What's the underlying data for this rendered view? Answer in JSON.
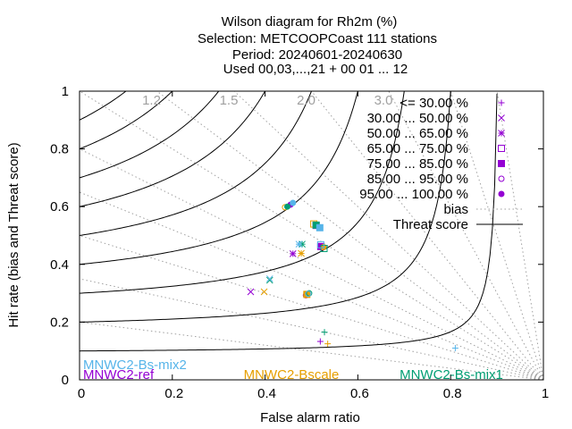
{
  "chart_data": {
    "type": "scatter",
    "title": [
      "Wilson diagram  for Rh2m (%)",
      "Selection: METCOOPCoast    111 stations",
      "Period: 20240601-20240630",
      "Used 00,03,...,21 + 00 01 ... 12"
    ],
    "xlabel": "False alarm ratio",
    "ylabel": "Hit rate (bias and Threat score)",
    "xlim": [
      0,
      1
    ],
    "ylim": [
      0,
      1
    ],
    "xticks": [
      "0",
      "0.2",
      "0.4",
      "0.6",
      "0.8",
      "1"
    ],
    "yticks": [
      "0",
      "0.2",
      "0.4",
      "0.6",
      "0.8",
      "1"
    ],
    "bias_values": [
      1.2,
      1.5,
      2.0,
      3.0
    ],
    "bias_labels": [
      "1.2",
      "1.5",
      "2.0",
      "3.0"
    ],
    "threat_scores": [
      0.1,
      0.2,
      0.3,
      0.4,
      0.5,
      0.6,
      0.7,
      0.8,
      0.9
    ],
    "legend_position": "top-right",
    "legend": [
      {
        "label": "<= 30.00 %",
        "symbol": "plus"
      },
      {
        "label": "30.00 ... 50.00 %",
        "symbol": "cross"
      },
      {
        "label": "50.00 ... 65.00 %",
        "symbol": "star"
      },
      {
        "label": "65.00 ... 75.00 %",
        "symbol": "box"
      },
      {
        "label": "75.00 ... 85.00 %",
        "symbol": "fbox"
      },
      {
        "label": "85.00 ... 95.00 %",
        "symbol": "circle"
      },
      {
        "label": "95.00 ... 100.00 %",
        "symbol": "fcircle"
      },
      {
        "label": "bias",
        "symbol": "dotline"
      },
      {
        "label": "Threat score",
        "symbol": "line"
      }
    ],
    "models": [
      {
        "name": "MNWC2-ref",
        "color": "#9400d3"
      },
      {
        "name": "MNWC2-Bscale",
        "color": "#e69f00"
      },
      {
        "name": "MNWC2-Bs-mix1",
        "color": "#009e73"
      },
      {
        "name": "MNWC2-Bs-mix2",
        "color": "#56b4e9"
      }
    ],
    "series": [
      {
        "name": "MNWC2-ref",
        "color": "#9400d3",
        "points": [
          {
            "x": 0.519,
            "y": 0.133,
            "m": "plus"
          },
          {
            "x": 0.369,
            "y": 0.305,
            "m": "cross"
          },
          {
            "x": 0.46,
            "y": 0.437,
            "m": "star"
          },
          {
            "x": 0.51,
            "y": 0.535,
            "m": "box"
          },
          {
            "x": 0.52,
            "y": 0.462,
            "m": "fbox"
          },
          {
            "x": 0.488,
            "y": 0.293,
            "m": "circle"
          },
          {
            "x": 0.455,
            "y": 0.607,
            "m": "fcircle"
          }
        ]
      },
      {
        "name": "MNWC2-Bscale",
        "color": "#e69f00",
        "points": [
          {
            "x": 0.535,
            "y": 0.125,
            "m": "plus"
          },
          {
            "x": 0.398,
            "y": 0.305,
            "m": "cross"
          },
          {
            "x": 0.478,
            "y": 0.438,
            "m": "star"
          },
          {
            "x": 0.505,
            "y": 0.54,
            "m": "box"
          },
          {
            "x": 0.49,
            "y": 0.296,
            "m": "fbox"
          },
          {
            "x": 0.443,
            "y": 0.598,
            "m": "circle"
          },
          {
            "x": 0.526,
            "y": 0.46,
            "m": "fcircle"
          }
        ]
      },
      {
        "name": "MNWC2-Bs-mix1",
        "color": "#009e73",
        "points": [
          {
            "x": 0.528,
            "y": 0.165,
            "m": "plus"
          },
          {
            "x": 0.41,
            "y": 0.345,
            "m": "cross"
          },
          {
            "x": 0.48,
            "y": 0.47,
            "m": "star"
          },
          {
            "x": 0.527,
            "y": 0.455,
            "m": "box"
          },
          {
            "x": 0.51,
            "y": 0.536,
            "m": "fbox"
          },
          {
            "x": 0.495,
            "y": 0.3,
            "m": "circle"
          },
          {
            "x": 0.448,
            "y": 0.6,
            "m": "fcircle"
          }
        ]
      },
      {
        "name": "MNWC2-Bs-mix2",
        "color": "#56b4e9",
        "points": [
          {
            "x": 0.81,
            "y": 0.11,
            "m": "plus"
          },
          {
            "x": 0.41,
            "y": 0.35,
            "m": "cross"
          },
          {
            "x": 0.473,
            "y": 0.47,
            "m": "star"
          },
          {
            "x": 0.52,
            "y": 0.468,
            "m": "box"
          },
          {
            "x": 0.518,
            "y": 0.527,
            "m": "fbox"
          },
          {
            "x": 0.493,
            "y": 0.298,
            "m": "circle"
          },
          {
            "x": 0.46,
            "y": 0.613,
            "m": "fcircle"
          }
        ]
      }
    ]
  }
}
